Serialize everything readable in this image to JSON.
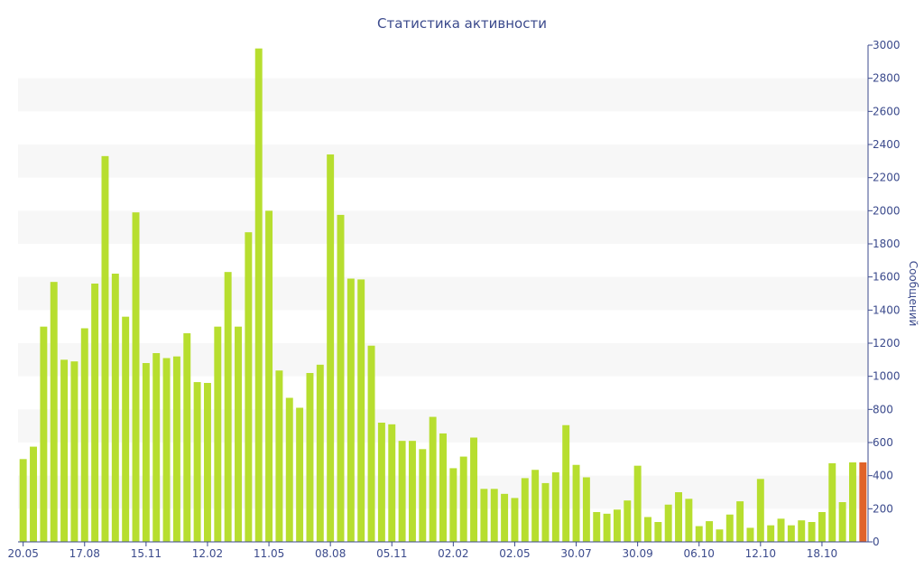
{
  "chart_data": {
    "type": "bar",
    "title": "Статистика активности",
    "xlabel": "",
    "ylabel": "Сообщений",
    "ylim": [
      0,
      3000
    ],
    "y_ticks": [
      0,
      200,
      400,
      600,
      800,
      1000,
      1200,
      1400,
      1600,
      1800,
      2000,
      2200,
      2400,
      2600,
      2800,
      3000
    ],
    "y_axis_side": "right",
    "grid": "alternating horizontal bands",
    "x_tick_labels": [
      {
        "label": "20.05",
        "index": 0
      },
      {
        "label": "17.08",
        "index": 6
      },
      {
        "label": "15.11",
        "index": 12
      },
      {
        "label": "12.02",
        "index": 18
      },
      {
        "label": "11.05",
        "index": 24
      },
      {
        "label": "08.08",
        "index": 30
      },
      {
        "label": "05.11",
        "index": 36
      },
      {
        "label": "02.02",
        "index": 42
      },
      {
        "label": "02.05",
        "index": 48
      },
      {
        "label": "30.07",
        "index": 54
      },
      {
        "label": "30.09",
        "index": 60
      },
      {
        "label": "06.10",
        "index": 66
      },
      {
        "label": "12.10",
        "index": 72
      },
      {
        "label": "18.10",
        "index": 78
      }
    ],
    "values": [
      500,
      575,
      1300,
      1570,
      1100,
      1090,
      1290,
      1560,
      2330,
      1620,
      1360,
      1990,
      1080,
      1140,
      1110,
      1120,
      1260,
      965,
      960,
      1300,
      1630,
      1300,
      1870,
      2980,
      2000,
      1035,
      870,
      810,
      1020,
      1070,
      2340,
      1975,
      1590,
      1585,
      1185,
      720,
      710,
      610,
      610,
      560,
      755,
      655,
      445,
      515,
      630,
      320,
      320,
      290,
      265,
      385,
      435,
      355,
      420,
      705,
      465,
      390,
      180,
      170,
      195,
      250,
      460,
      150,
      120,
      225,
      300,
      260,
      95,
      125,
      75,
      165,
      245,
      85,
      380,
      100,
      140,
      100,
      130,
      120,
      180,
      475,
      240,
      480,
      480
    ],
    "bar_color": "#b7de2f",
    "highlight_color": "#e0632a",
    "highlight_index": 82
  }
}
